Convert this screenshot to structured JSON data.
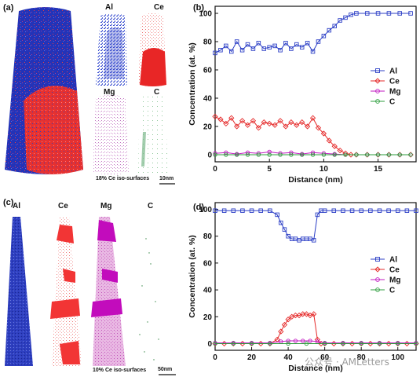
{
  "panels": {
    "a": {
      "label": "(a)",
      "elements": [
        "Al",
        "Ce",
        "Mg",
        "C"
      ],
      "iso": "18% Ce iso-surfaces",
      "scale": "10nm"
    },
    "b": {
      "label": "(b)"
    },
    "c": {
      "label": "(c)",
      "elements": [
        "Al",
        "Ce",
        "Mg",
        "C"
      ],
      "iso": "10% Ce iso-surfaces",
      "scale": "50nm"
    },
    "d": {
      "label": "(d)"
    }
  },
  "colors": {
    "Al": "#2c3fc6",
    "Ce": "#e52a2a",
    "Mg": "#c21ac2",
    "C": "#2e9e3e"
  },
  "watermark": "公众号 · AMLetters",
  "chart_data": [
    {
      "type": "line",
      "panel": "b",
      "xlabel": "Distance (nm)",
      "ylabel": "Concentration (at. %)",
      "xlim": [
        0,
        18.5
      ],
      "ylim": [
        -5,
        105
      ],
      "xticks": [
        "0",
        "5",
        "10",
        "15"
      ],
      "yticks": [
        "0",
        "20",
        "40",
        "60",
        "80",
        "100"
      ],
      "legend_position": "right",
      "series": [
        {
          "name": "Al",
          "color": "#2c3fc6",
          "marker": "square",
          "x": [
            0,
            0.5,
            1,
            1.5,
            2,
            2.5,
            3,
            3.5,
            4,
            4.5,
            5,
            5.5,
            6,
            6.5,
            7,
            7.5,
            8,
            8.5,
            9,
            9.5,
            10,
            10.5,
            11,
            11.5,
            12,
            12.5,
            13,
            14,
            15,
            16,
            17,
            18
          ],
          "y": [
            72,
            74,
            77,
            73,
            80,
            74,
            78,
            75,
            79,
            75,
            76,
            77,
            74,
            79,
            75,
            78,
            76,
            79,
            73,
            80,
            84,
            88,
            91,
            95,
            97,
            99,
            100,
            100,
            100,
            100,
            100,
            100
          ]
        },
        {
          "name": "Ce",
          "color": "#e52a2a",
          "marker": "diamond",
          "x": [
            0,
            0.5,
            1,
            1.5,
            2,
            2.5,
            3,
            3.5,
            4,
            4.5,
            5,
            5.5,
            6,
            6.5,
            7,
            7.5,
            8,
            8.5,
            9,
            9.5,
            10,
            10.5,
            11,
            11.5,
            12,
            12.5,
            13,
            14,
            15,
            16,
            17,
            18
          ],
          "y": [
            27,
            25,
            22,
            26,
            20,
            24,
            21,
            24,
            19,
            23,
            22,
            21,
            24,
            20,
            23,
            21,
            23,
            20,
            26,
            19,
            15,
            10,
            6,
            3,
            1,
            0,
            0,
            0,
            0,
            0,
            0,
            0
          ]
        },
        {
          "name": "Mg",
          "color": "#c21ac2",
          "marker": "circle",
          "x": [
            0,
            1,
            2,
            3,
            4,
            5,
            6,
            7,
            8,
            9,
            10,
            11,
            12,
            13,
            14,
            15,
            16,
            17,
            18
          ],
          "y": [
            1,
            1.5,
            0.5,
            1.5,
            1,
            2,
            1,
            1.5,
            0.5,
            1.5,
            1,
            0.5,
            0,
            0,
            0,
            0,
            0,
            0,
            0
          ]
        },
        {
          "name": "C",
          "color": "#2e9e3e",
          "marker": "circle",
          "x": [
            0,
            1,
            2,
            3,
            4,
            5,
            6,
            7,
            8,
            9,
            10,
            11,
            12,
            13,
            14,
            15,
            16,
            17,
            18
          ],
          "y": [
            0,
            0,
            0,
            0,
            0,
            0,
            0,
            0,
            0,
            0,
            0,
            0,
            0,
            0,
            0,
            0,
            0,
            0,
            0
          ]
        }
      ]
    },
    {
      "type": "line",
      "panel": "d",
      "xlabel": "Distance (nm)",
      "ylabel": "Concentration (at. %)",
      "xlim": [
        0,
        110
      ],
      "ylim": [
        -5,
        105
      ],
      "xticks": [
        "0",
        "20",
        "40",
        "60",
        "80",
        "100"
      ],
      "yticks": [
        "0",
        "20",
        "40",
        "60",
        "80",
        "100"
      ],
      "legend_position": "right",
      "series": [
        {
          "name": "Al",
          "color": "#2c3fc6",
          "marker": "square",
          "x": [
            0,
            5,
            10,
            15,
            20,
            25,
            30,
            34,
            36,
            38,
            40,
            42,
            44,
            46,
            48,
            50,
            52,
            54,
            56,
            58,
            60,
            65,
            70,
            75,
            80,
            85,
            90,
            95,
            100,
            105,
            110
          ],
          "y": [
            99,
            99,
            99,
            99,
            99,
            99,
            99,
            96,
            90,
            85,
            80,
            78,
            78,
            77,
            78,
            78,
            78,
            77,
            96,
            99,
            99,
            99,
            99,
            99,
            99,
            99,
            99,
            99,
            99,
            99,
            99
          ]
        },
        {
          "name": "Ce",
          "color": "#e52a2a",
          "marker": "diamond",
          "x": [
            0,
            5,
            10,
            15,
            20,
            25,
            30,
            34,
            36,
            38,
            40,
            42,
            44,
            46,
            48,
            50,
            52,
            54,
            56,
            58,
            60,
            65,
            70,
            75,
            80,
            85,
            90,
            95,
            100,
            105,
            110
          ],
          "y": [
            0,
            0,
            0,
            0,
            0,
            0,
            0,
            3,
            9,
            14,
            18,
            20,
            21,
            21,
            22,
            22,
            21,
            22,
            3,
            0,
            0,
            0,
            0,
            0,
            0,
            0,
            0,
            0,
            0,
            0,
            0
          ]
        },
        {
          "name": "Mg",
          "color": "#c21ac2",
          "marker": "circle",
          "x": [
            0,
            10,
            20,
            30,
            36,
            40,
            44,
            48,
            52,
            56,
            60,
            70,
            80,
            90,
            100,
            110
          ],
          "y": [
            0.5,
            0.5,
            0.5,
            0.5,
            1.5,
            2,
            2,
            2,
            2,
            1.5,
            0.5,
            0.5,
            0.5,
            0.5,
            0.5,
            0.5
          ]
        },
        {
          "name": "C",
          "color": "#2e9e3e",
          "marker": "circle",
          "x": [
            0,
            10,
            20,
            30,
            40,
            50,
            60,
            70,
            80,
            90,
            100,
            110
          ],
          "y": [
            0,
            0,
            0,
            0,
            0,
            0,
            0,
            0,
            0,
            0,
            0,
            0
          ]
        }
      ]
    }
  ]
}
